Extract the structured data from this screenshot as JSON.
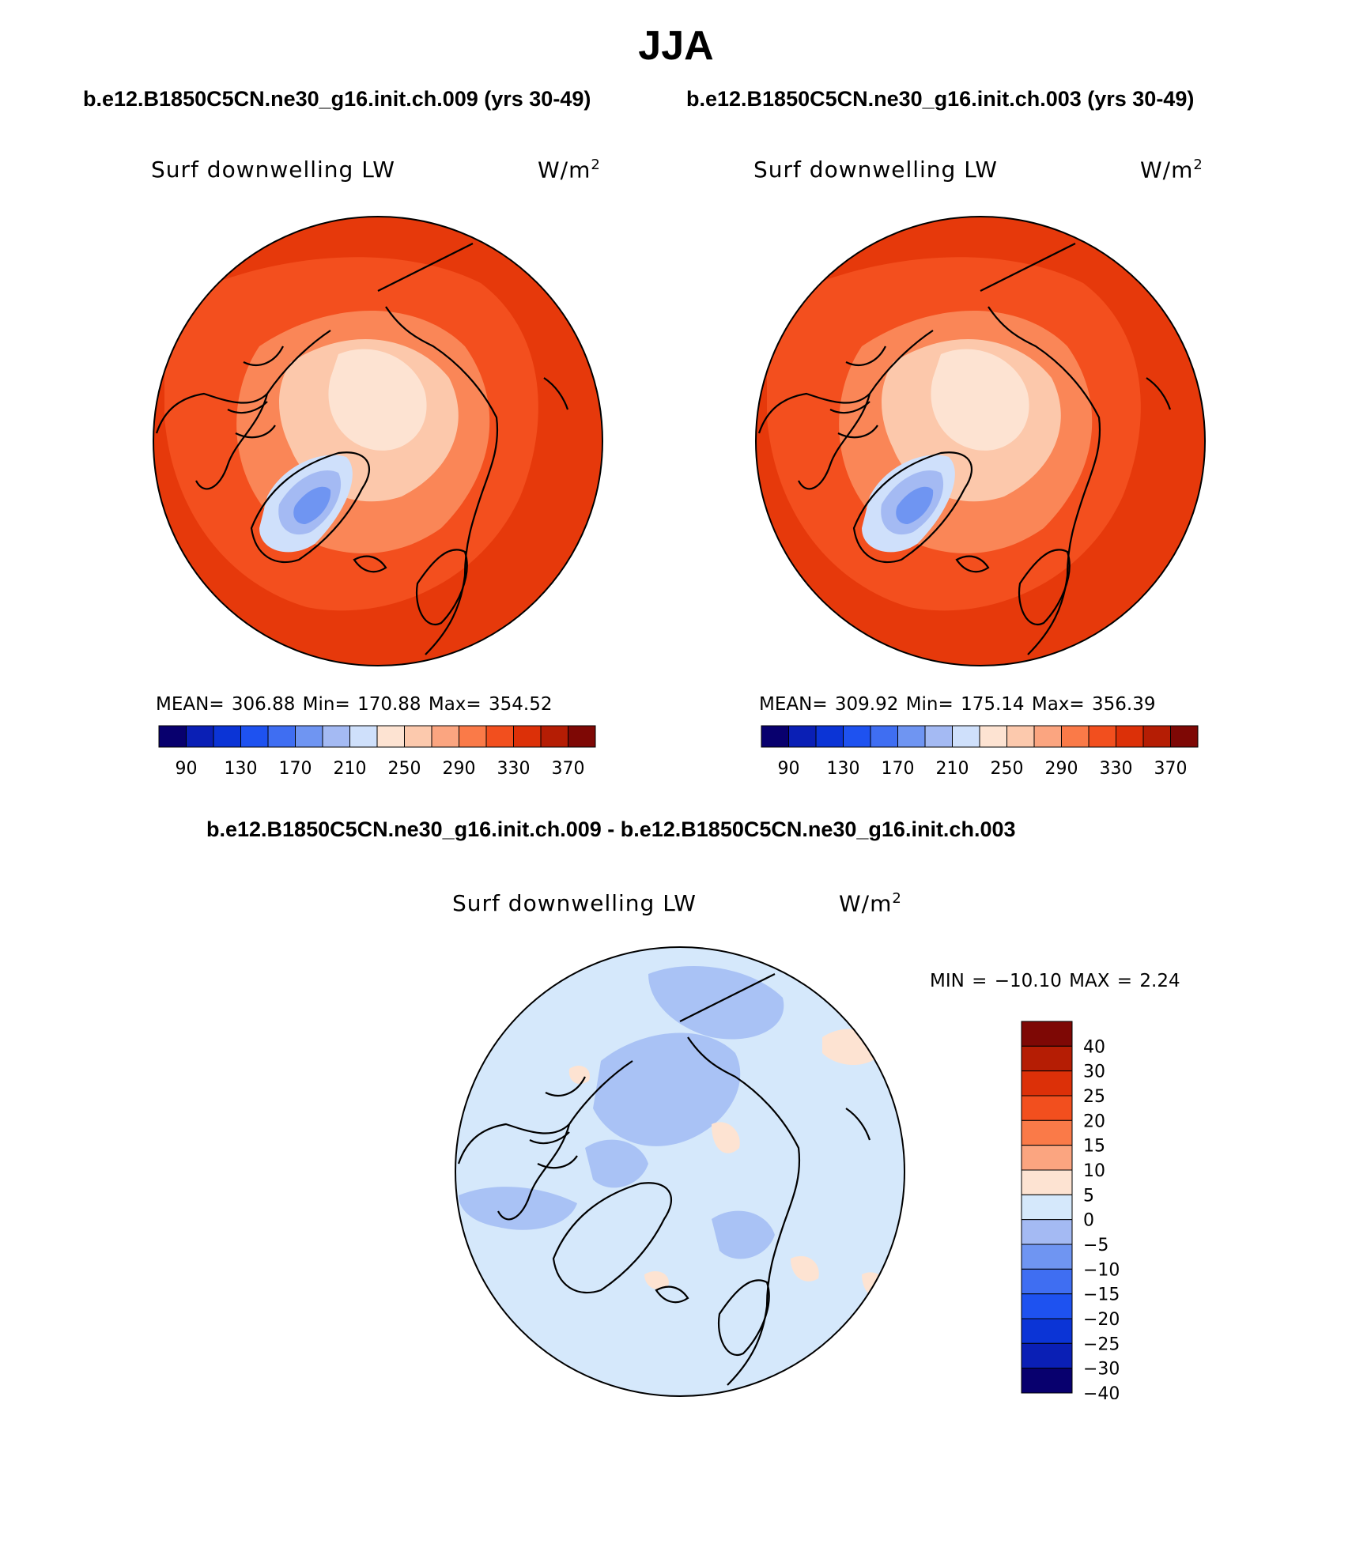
{
  "page": {
    "title": "JJA",
    "subtitle_left": "b.e12.B1850C5CN.ne30_g16.init.ch.009 (yrs 30-49)",
    "subtitle_right": "b.e12.B1850C5CN.ne30_g16.init.ch.003 (yrs 30-49)",
    "diff_title": "b.e12.B1850C5CN.ne30_g16.init.ch.009 - b.e12.B1850C5CN.ne30_g16.init.ch.003"
  },
  "panels": [
    {
      "variable": "Surf downwelling LW",
      "units_base": "W/m",
      "units_sup": "2",
      "stats": "MEAN= 306.88   Min= 170.88   Max= 354.52"
    },
    {
      "variable": "Surf downwelling LW",
      "units_base": "W/m",
      "units_sup": "2",
      "stats": "MEAN= 309.92   Min= 175.14   Max= 356.39"
    },
    {
      "variable": "Surf downwelling LW",
      "units_base": "W/m",
      "units_sup": "2",
      "stats": "MIN = −10.10 MAX =    2.24"
    }
  ],
  "colorbar_abs": {
    "colors": [
      "#08006e",
      "#0a1fb5",
      "#0b34d6",
      "#1e52f0",
      "#3f6ef2",
      "#6f95f2",
      "#a4baf3",
      "#cfe0fb",
      "#fde3d2",
      "#fcc9ad",
      "#fba580",
      "#fa7a48",
      "#f24f1e",
      "#dc3008",
      "#b51d04",
      "#7e0805"
    ],
    "labels": [
      "90",
      "130",
      "170",
      "210",
      "250",
      "290",
      "330",
      "370"
    ]
  },
  "colorbar_diff": {
    "colors": [
      "#7e0805",
      "#b51d04",
      "#dc3008",
      "#f24f1e",
      "#fa7a48",
      "#fba580",
      "#fde3d2",
      "#d5e8fb",
      "#a4baf3",
      "#6f95f2",
      "#3f6ef2",
      "#1e52f0",
      "#0b34d6",
      "#0a1fb5",
      "#08006e"
    ],
    "labels": [
      "40",
      "30",
      "25",
      "20",
      "15",
      "10",
      "5",
      "0",
      "−5",
      "−10",
      "−15",
      "−20",
      "−25",
      "−30",
      "−40"
    ]
  },
  "map_colors": {
    "warm_outer": "#e6390b",
    "warm_mid": "#f34f1e",
    "warm_inner": "#fa8657",
    "pale": "#fcc8ab",
    "palest": "#fde3d2",
    "cool_light": "#cfe0fb",
    "cool_mid": "#a4baf3",
    "cool_deep": "#6f95f2",
    "diff_bg": "#d5e8fb",
    "diff_blue": "#a9c2f5",
    "diff_peach": "#fde3d2"
  }
}
